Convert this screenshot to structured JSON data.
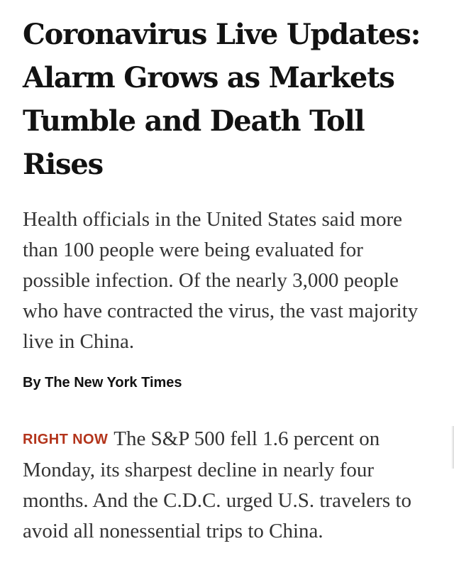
{
  "article": {
    "headline": "Coronavirus Live Updates: Alarm Grows as Markets Tumble and Death Toll Rises",
    "summary": "Health officials in the United States said more than 100 people were being evaluated for possible infection. Of the nearly 3,000 people who have contracted the virus, the vast majority live in China.",
    "byline": "By The New York Times",
    "update": {
      "label": "RIGHT NOW",
      "label_color": "#b3341b",
      "text": "The S&P 500 fell 1.6 percent on Monday, its sharpest decline in nearly four months. And the C.D.C. urged U.S. travelers to avoid all nonessential trips to China."
    }
  }
}
